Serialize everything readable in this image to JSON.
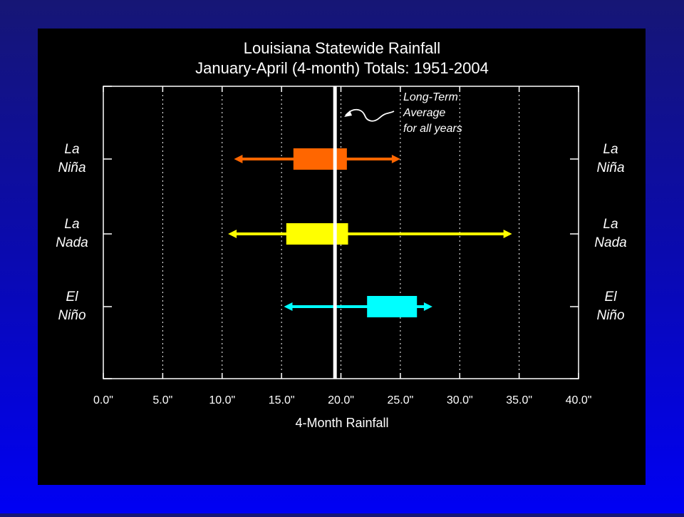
{
  "colors": {
    "panel": "#000000",
    "foreground": "#ffffff",
    "la_nina": "#ff6600",
    "la_nada": "#ffff00",
    "el_nino": "#00ffff",
    "average_line": "#ffffff"
  },
  "chart_data": {
    "type": "box",
    "title": "Louisiana Statewide Rainfall",
    "subtitle": "January-April (4-month) Totals: 1951-2004",
    "xlabel": "4-Month Rainfall",
    "ylabel": "",
    "xlim": [
      0,
      40
    ],
    "x_ticks": [
      0,
      5,
      10,
      15,
      20,
      25,
      30,
      35,
      40
    ],
    "x_tick_labels": [
      "0.0\"",
      "5.0\"",
      "10.0\"",
      "15.0\"",
      "20.0\"",
      "25.0\"",
      "30.0\"",
      "35.0\"",
      "40.0\""
    ],
    "grid": "vertical dotted",
    "series": [
      {
        "key": "la_nina",
        "label_line1": "La",
        "label_line2": "Niña",
        "min": 11.0,
        "q1": 16.0,
        "q3": 20.5,
        "max": 25.0
      },
      {
        "key": "la_nada",
        "label_line1": "La",
        "label_line2": "Nada",
        "min": 10.5,
        "q1": 15.4,
        "q3": 20.6,
        "max": 34.4
      },
      {
        "key": "el_nino",
        "label_line1": "El",
        "label_line2": "Niño",
        "min": 15.2,
        "q1": 22.2,
        "q3": 26.4,
        "max": 27.7
      }
    ],
    "reference_line": {
      "value": 19.5
    },
    "annotation": {
      "line1": "Long-Term",
      "line2": "Average",
      "line3": "for all years"
    }
  }
}
